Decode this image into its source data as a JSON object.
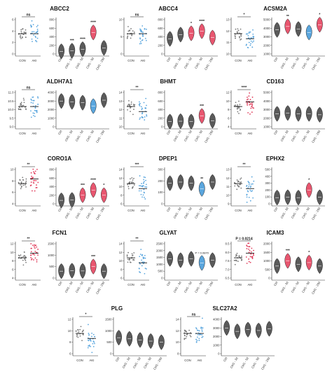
{
  "figure": {
    "colors": {
      "con": "#7a7a7a",
      "aki": "#5aa6de",
      "aki_high": "#e03a59",
      "violin_default": "#5a5a5a",
      "violin_red": "#e8566f",
      "violin_blue": "#5aa6de",
      "violin_outline": "#222222"
    },
    "group_labels": [
      "CON",
      "AKI"
    ],
    "violin_labels": [
      "Ctrl",
      "Ctrl1 - 3d",
      "Ctrl1 - 5d",
      "Ctrl1 - 9d",
      "Ctrl1 - 29d"
    ]
  },
  "chart_data": [
    {
      "type": "scatter",
      "title": "ABCC2",
      "categories": [
        "CON",
        "AKI"
      ],
      "significance": "ns",
      "scatter_ticks": [
        "6",
        "4",
        "2",
        "0"
      ],
      "violin_ticks": [
        "800",
        "600",
        "400",
        "200",
        "0"
      ],
      "violin_medians": [
        60,
        75,
        110,
        500,
        140
      ],
      "violin_colors": [
        "default",
        "default",
        "default",
        "red",
        "default"
      ],
      "violin_annot": [
        "",
        "***",
        "****",
        "****",
        ""
      ]
    },
    {
      "type": "scatter",
      "title": "ABCC4",
      "categories": [
        "CON",
        "AKI"
      ],
      "significance": "ns",
      "scatter_ticks": [
        "10",
        "5",
        "0"
      ],
      "violin_ticks": [
        "800",
        "600",
        "400",
        "200",
        "0"
      ],
      "violin_medians": [
        350,
        450,
        480,
        530,
        380
      ],
      "violin_colors": [
        "default",
        "default",
        "red",
        "red",
        "red"
      ],
      "violin_annot": [
        "",
        "",
        "*",
        "****",
        ""
      ]
    },
    {
      "type": "scatter",
      "title": "ACSM2A",
      "categories": [
        "CON",
        "AKI"
      ],
      "significance": "*",
      "scatter_ticks": [
        "13",
        "12",
        "11",
        "10"
      ],
      "violin_ticks": [
        "5000",
        "4000",
        "3000",
        "2000",
        "1000"
      ],
      "violin_medians": [
        3800,
        4200,
        3900,
        3500,
        4400
      ],
      "violin_colors": [
        "default",
        "red",
        "default",
        "blue",
        "red"
      ],
      "violin_annot": [
        "",
        "**",
        "",
        "",
        "*"
      ]
    },
    {
      "type": "scatter",
      "title": "ALDH7A1",
      "categories": [
        "CON",
        "AKI"
      ],
      "significance": "ns",
      "scatter_ticks": [
        "11.0",
        "10.5",
        "10.0",
        "9.5",
        "9.0"
      ],
      "violin_ticks": [
        "4000",
        "3000",
        "2000",
        "1000",
        "0"
      ],
      "violin_medians": [
        3000,
        2900,
        2800,
        2400,
        3100
      ],
      "violin_colors": [
        "default",
        "default",
        "default",
        "blue",
        "default"
      ],
      "violin_annot": [
        "",
        "",
        "",
        "",
        ""
      ]
    },
    {
      "type": "scatter",
      "title": "BHMT",
      "categories": [
        "CON",
        "AKI"
      ],
      "significance": "**",
      "scatter_ticks": [
        "14",
        "13",
        "12",
        "11",
        "10"
      ],
      "violin_ticks": [
        "800",
        "600",
        "400",
        "200",
        "0"
      ],
      "violin_medians": [
        120,
        130,
        120,
        250,
        140
      ],
      "violin_colors": [
        "default",
        "default",
        "default",
        "red",
        "default"
      ],
      "violin_annot": [
        "",
        "",
        "",
        "***",
        ""
      ]
    },
    {
      "type": "scatter",
      "title": "CD163",
      "categories": [
        "CON",
        "AKI"
      ],
      "significance": "****",
      "scatter_ticks": [
        "12",
        "10",
        "8",
        "6",
        "4"
      ],
      "violin_ticks": [
        "5000",
        "4000",
        "3000",
        "2000",
        "1000"
      ],
      "violin_medians": [
        2500,
        2600,
        2500,
        2500,
        2400
      ],
      "violin_colors": [
        "default",
        "default",
        "default",
        "default",
        "default"
      ],
      "violin_annot": [
        "",
        "",
        "",
        "",
        ""
      ]
    },
    {
      "type": "scatter",
      "title": "CORO1A",
      "categories": [
        "CON",
        "AKI"
      ],
      "significance": "**",
      "scatter_ticks": [
        "10",
        "8",
        "6",
        "4"
      ],
      "violin_ticks": [
        "800",
        "600",
        "400",
        "200",
        "0"
      ],
      "violin_medians": [
        80,
        90,
        200,
        320,
        200
      ],
      "violin_colors": [
        "default",
        "default",
        "red",
        "red",
        "red"
      ],
      "violin_annot": [
        "",
        "",
        "***",
        "****",
        "*"
      ]
    },
    {
      "type": "scatter",
      "title": "DPEP1",
      "categories": [
        "CON",
        "AKI"
      ],
      "significance": "***",
      "scatter_ticks": [
        "14",
        "12",
        "10",
        "8",
        "6"
      ],
      "violin_ticks": [
        "300",
        "200",
        "100",
        "0"
      ],
      "violin_medians": [
        180,
        190,
        180,
        130,
        190
      ],
      "violin_colors": [
        "default",
        "default",
        "default",
        "blue",
        "default"
      ],
      "violin_annot": [
        "",
        "",
        "",
        "**",
        ""
      ]
    },
    {
      "type": "scatter",
      "title": "EPHX2",
      "categories": [
        "CON",
        "AKI"
      ],
      "significance": "**",
      "scatter_ticks": [
        "13",
        "12",
        "11",
        "10",
        "9"
      ],
      "violin_ticks": [
        "500",
        "400",
        "300",
        "200",
        "100",
        "0"
      ],
      "violin_medians": [
        90,
        95,
        90,
        200,
        95
      ],
      "violin_colors": [
        "default",
        "default",
        "default",
        "red",
        "default"
      ],
      "violin_annot": [
        "",
        "",
        "",
        "*",
        ""
      ]
    },
    {
      "type": "scatter",
      "title": "FCN1",
      "categories": [
        "CON",
        "AKI"
      ],
      "significance": "**",
      "scatter_ticks": [
        "12",
        "10",
        "8",
        "6",
        "4"
      ],
      "violin_ticks": [
        "1500",
        "1000",
        "500",
        "0"
      ],
      "violin_medians": [
        300,
        320,
        310,
        500,
        300
      ],
      "violin_colors": [
        "default",
        "default",
        "default",
        "red",
        "default"
      ],
      "violin_annot": [
        "",
        "",
        "",
        "***",
        ""
      ]
    },
    {
      "type": "scatter",
      "title": "GLYAT",
      "categories": [
        "CON",
        "AKI"
      ],
      "significance": "**",
      "scatter_ticks": [
        "14",
        "12",
        "10",
        "8",
        "6"
      ],
      "violin_ticks": [
        "2500",
        "2000",
        "1500",
        "1000",
        "500",
        "0"
      ],
      "violin_medians": [
        1400,
        1300,
        1400,
        1100,
        1300
      ],
      "violin_colors": [
        "default",
        "default",
        "default",
        "blue",
        "default"
      ],
      "violin_annot": [
        "",
        "",
        "",
        "P = 0.0870",
        ""
      ]
    },
    {
      "type": "scatter",
      "title": "ICAM3",
      "categories": [
        "CON",
        "AKI"
      ],
      "significance": "P = 0.0214",
      "scatter_ticks": [
        "8.5",
        "8.0",
        "7.5",
        "7.0",
        "6.5"
      ],
      "violin_ticks": [
        "2000",
        "1500",
        "1000",
        "500",
        "0"
      ],
      "violin_medians": [
        700,
        1000,
        800,
        900,
        700
      ],
      "violin_colors": [
        "default",
        "red",
        "default",
        "red",
        "default"
      ],
      "violin_annot": [
        "",
        "***",
        "",
        "*",
        ""
      ]
    },
    {
      "type": "scatter",
      "title": "PLG",
      "categories": [
        "CON",
        "AKI"
      ],
      "significance": "*",
      "scatter_ticks": [
        "12",
        "10",
        "8",
        "6"
      ],
      "violin_ticks": [
        "1500",
        "1000",
        "500",
        "0"
      ],
      "violin_medians": [
        700,
        650,
        600,
        550,
        500
      ],
      "violin_colors": [
        "default",
        "default",
        "default",
        "default",
        "default"
      ],
      "violin_annot": [
        "",
        "",
        "",
        "",
        ""
      ]
    },
    {
      "type": "scatter",
      "title": "SLC27A2",
      "categories": [
        "CON",
        "AKI"
      ],
      "significance": "ns",
      "scatter_ticks": [
        "14",
        "12",
        "10",
        "8"
      ],
      "violin_ticks": [
        "4000",
        "3000",
        "2000",
        "1000",
        "0"
      ],
      "violin_medians": [
        3000,
        2600,
        2800,
        2700,
        2900
      ],
      "violin_colors": [
        "default",
        "default",
        "default",
        "default",
        "default"
      ],
      "violin_annot": [
        "",
        "",
        "",
        "",
        ""
      ]
    }
  ]
}
